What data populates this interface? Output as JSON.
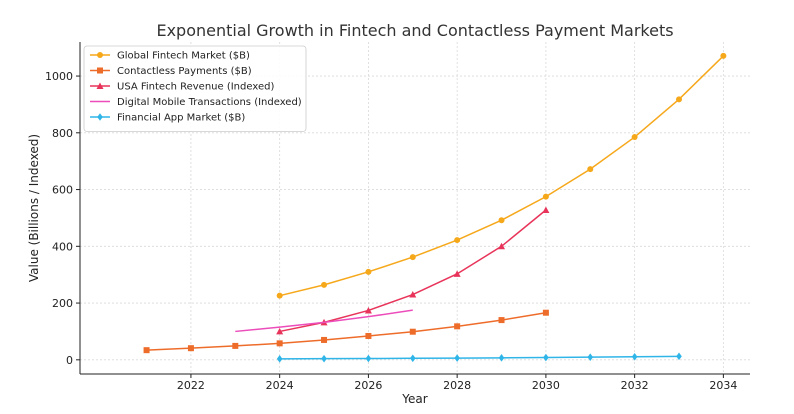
{
  "chart_data": {
    "type": "line",
    "title": "Exponential Growth in Fintech and Contactless Payment Markets",
    "xlabel": "Year",
    "ylabel": "Value (Billions / Indexed)",
    "xlim": [
      2019.5,
      2034.6
    ],
    "ylim": [
      -50,
      1120
    ],
    "xticks": [
      2022,
      2024,
      2026,
      2028,
      2030,
      2032,
      2034
    ],
    "yticks": [
      0,
      200,
      400,
      600,
      800,
      1000
    ],
    "grid": true,
    "legend_position": "top-left",
    "series": [
      {
        "name": "Global Fintech Market ($B)",
        "color": "#f6a81b",
        "marker": "circle",
        "x": [
          2024,
          2025,
          2026,
          2027,
          2028,
          2029,
          2030,
          2031,
          2032,
          2033,
          2034
        ],
        "values": [
          226,
          264,
          310,
          362,
          422,
          492,
          575,
          672,
          785,
          918,
          1071
        ]
      },
      {
        "name": "Contactless Payments ($B)",
        "color": "#ee6c2a",
        "marker": "square",
        "x": [
          2021,
          2022,
          2023,
          2024,
          2025,
          2026,
          2027,
          2028,
          2029,
          2030
        ],
        "values": [
          34,
          41,
          49,
          58,
          70,
          84,
          99,
          118,
          140,
          166
        ]
      },
      {
        "name": "USA Fintech Revenue (Indexed)",
        "color": "#e8345a",
        "marker": "triangle",
        "x": [
          2024,
          2025,
          2026,
          2027,
          2028,
          2029,
          2030
        ],
        "values": [
          100,
          132,
          174,
          230,
          303,
          400,
          528
        ]
      },
      {
        "name": "Digital Mobile Transactions (Indexed)",
        "color": "#ec4dbb",
        "marker": "none",
        "x": [
          2023,
          2024,
          2025,
          2026,
          2027
        ],
        "values": [
          100,
          115,
          132,
          152,
          175
        ]
      },
      {
        "name": "Financial App Market ($B)",
        "color": "#2fb5e8",
        "marker": "diamond",
        "x": [
          2024,
          2025,
          2026,
          2027,
          2028,
          2029,
          2030,
          2031,
          2032,
          2033
        ],
        "values": [
          3.5,
          4,
          4.6,
          5.3,
          6.1,
          7,
          8,
          9.3,
          10.7,
          12.3
        ]
      }
    ]
  }
}
